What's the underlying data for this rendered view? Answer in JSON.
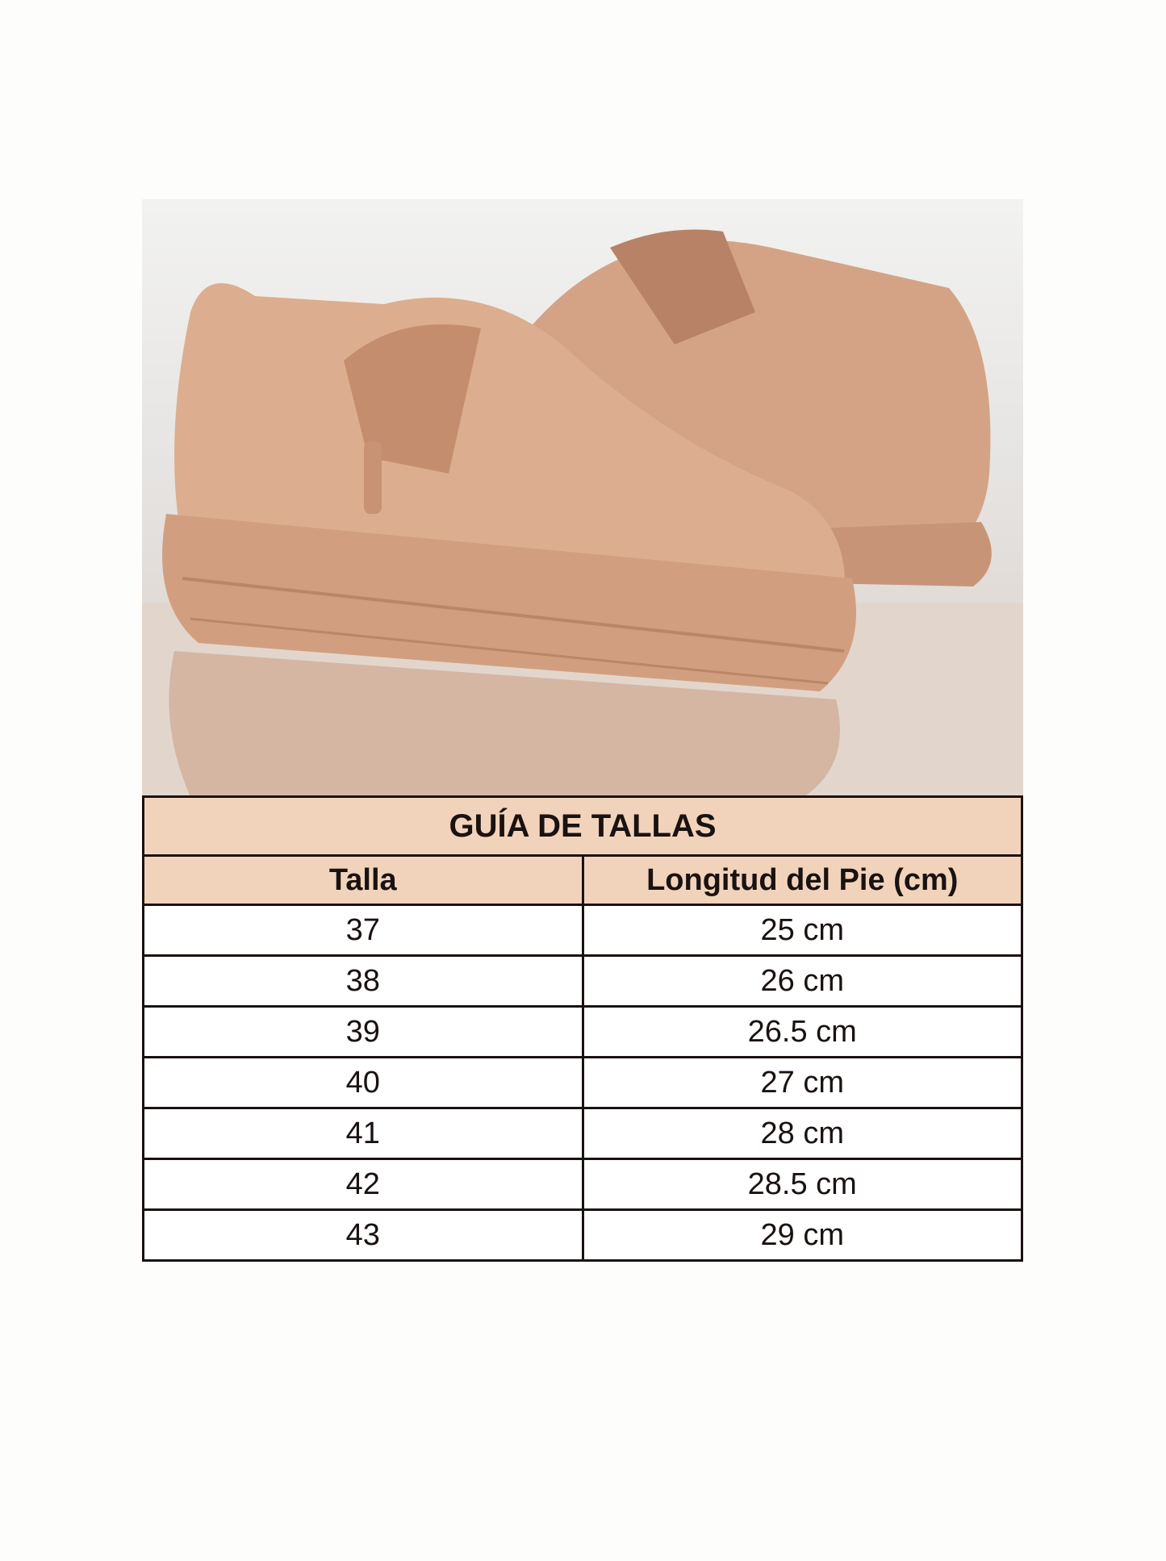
{
  "image": {
    "subject": "shoes-photo",
    "colors": {
      "shoe": "#d7a88a",
      "header_bg": "#f1d3bb",
      "border": "#1a1210"
    }
  },
  "table": {
    "title": "GUÍA DE TALLAS",
    "headers": [
      "Talla",
      "Longitud del Pie (cm)"
    ],
    "rows": [
      [
        "37",
        "25 cm"
      ],
      [
        "38",
        "26 cm"
      ],
      [
        "39",
        "26.5 cm"
      ],
      [
        "40",
        "27 cm"
      ],
      [
        "41",
        "28 cm"
      ],
      [
        "42",
        "28.5 cm"
      ],
      [
        "43",
        "29 cm"
      ]
    ]
  }
}
